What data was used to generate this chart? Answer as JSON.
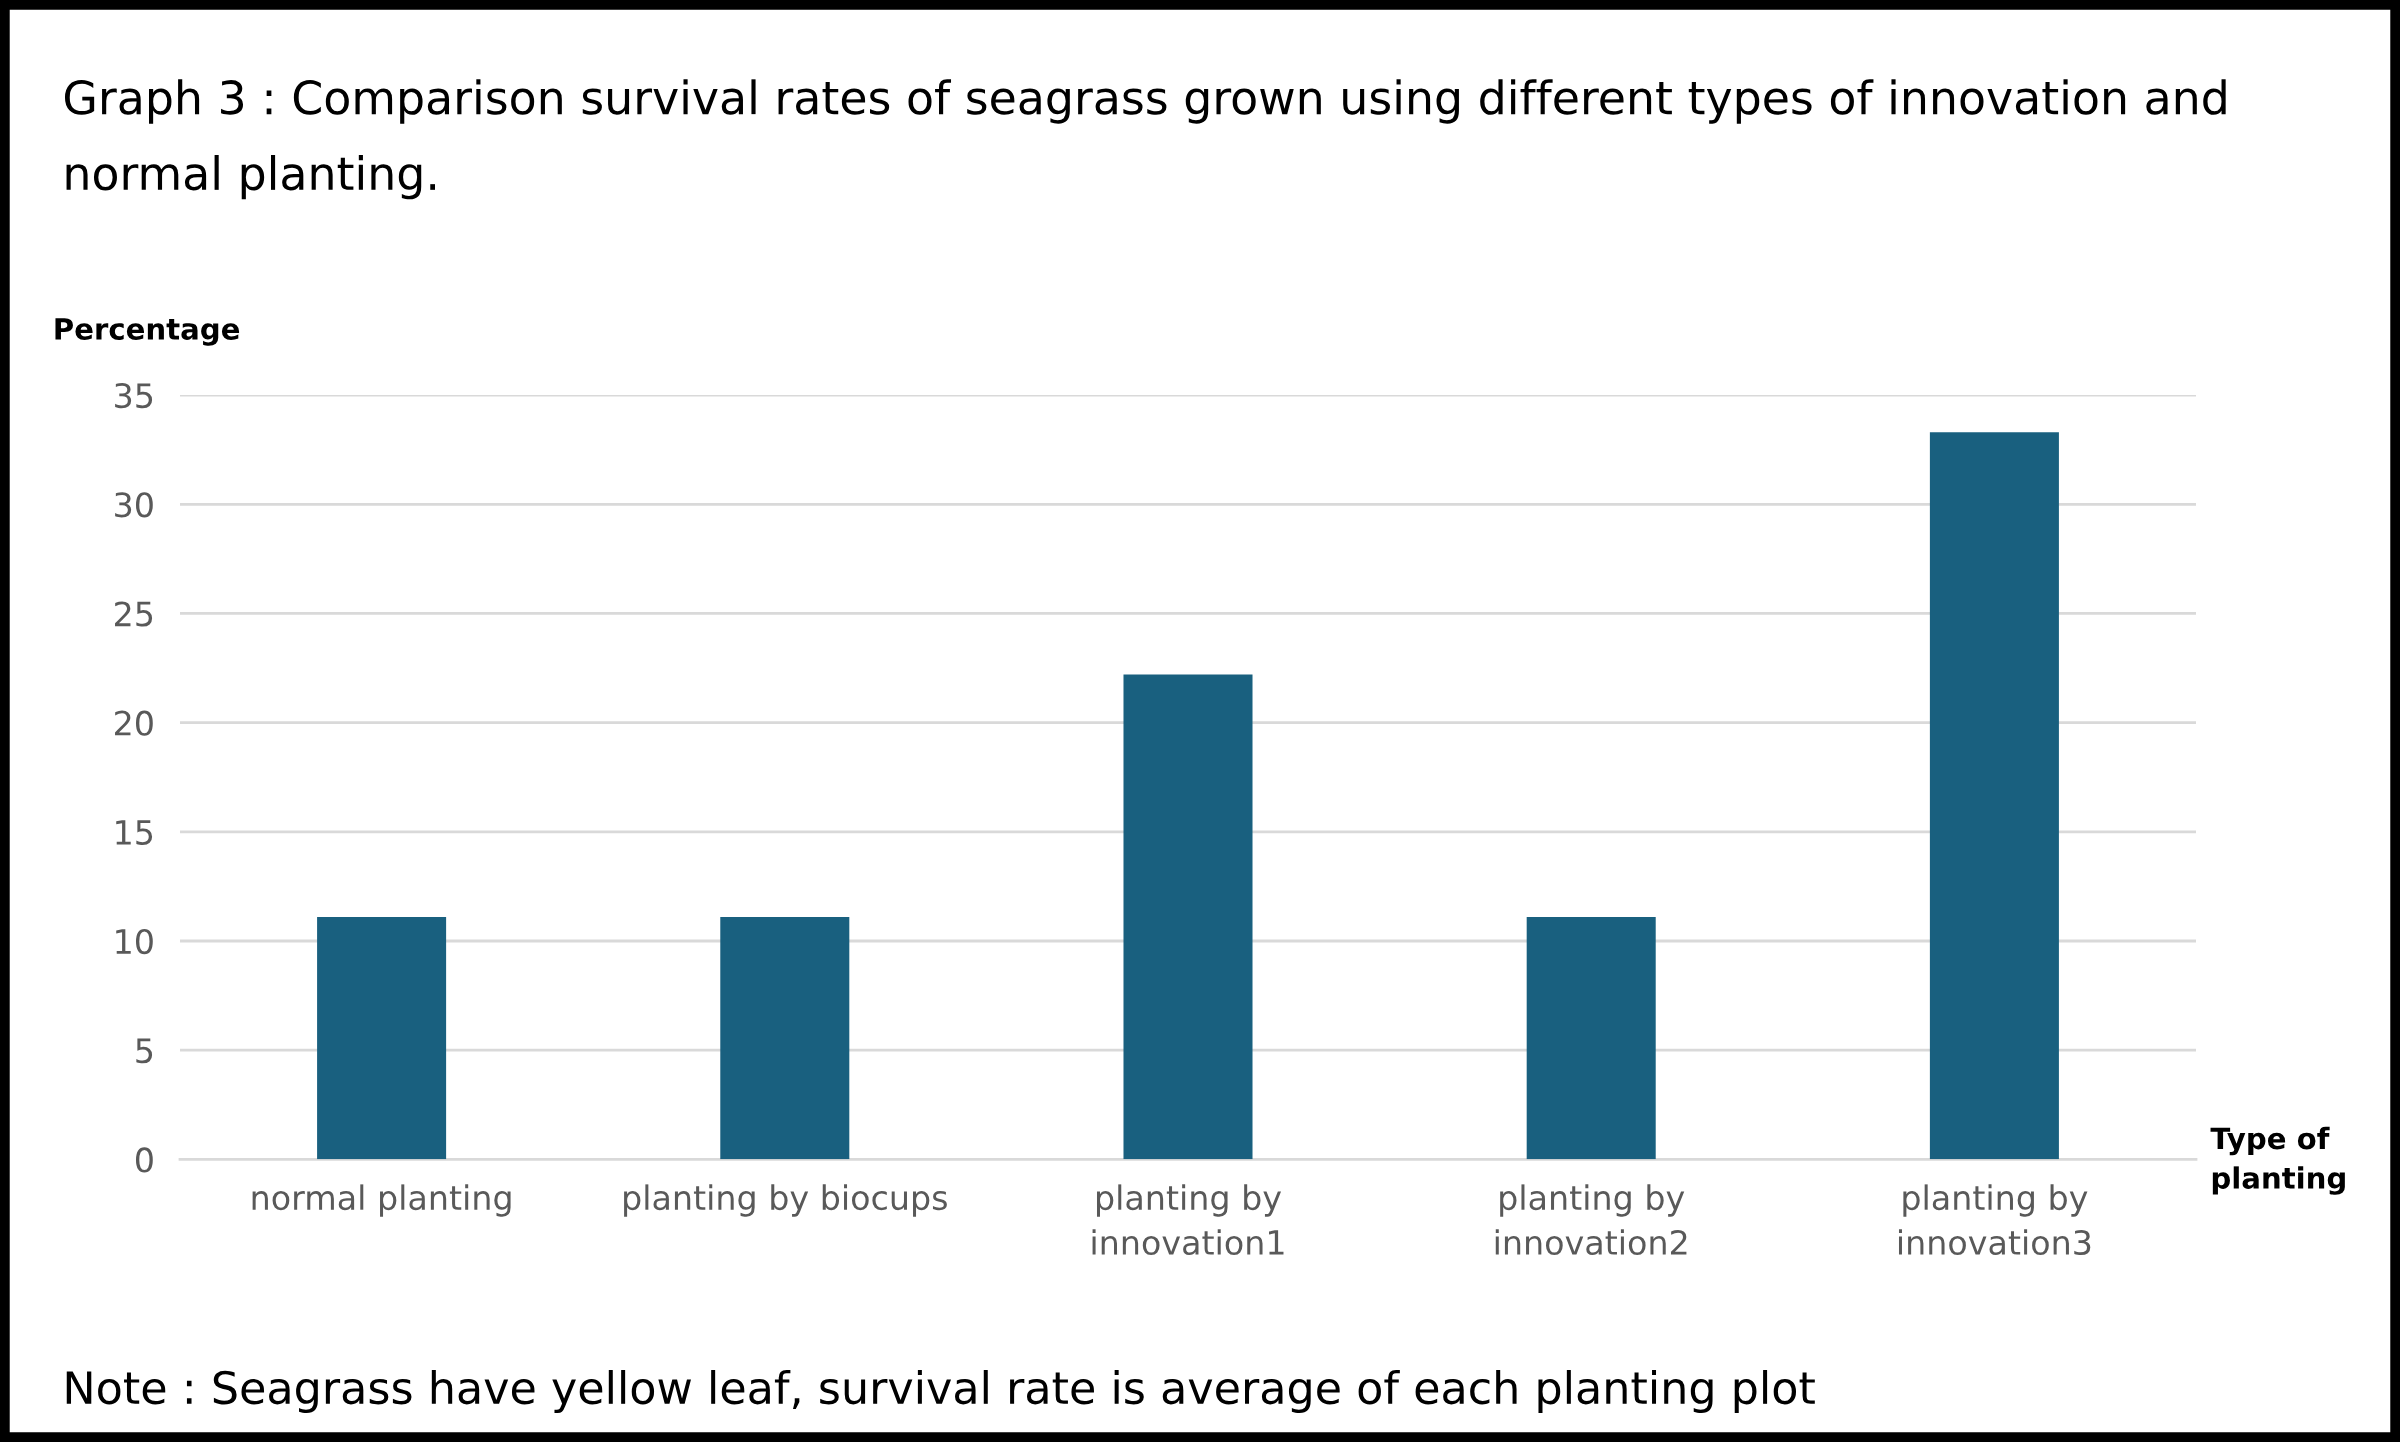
{
  "chart_data": {
    "type": "bar",
    "title": "Graph 3 : Comparison survival rates of seagrass grown using different types of innovation and normal planting.",
    "ylabel": "Percentage",
    "xlabel": "Type of planting",
    "categories": [
      "normal planting",
      "planting by biocups",
      "planting by innovation1",
      "planting by innovation2",
      "planting by innovation3"
    ],
    "values": [
      11.1,
      11.1,
      22.2,
      11.1,
      33.3
    ],
    "color": "#19607f",
    "ylim": [
      0,
      35
    ],
    "yticks": [
      0,
      5,
      10,
      15,
      20,
      25,
      30,
      35
    ],
    "grid": "y",
    "annotations": [
      "Note : Seagrass have yellow leaf, survival rate is average of each planting plot"
    ]
  }
}
